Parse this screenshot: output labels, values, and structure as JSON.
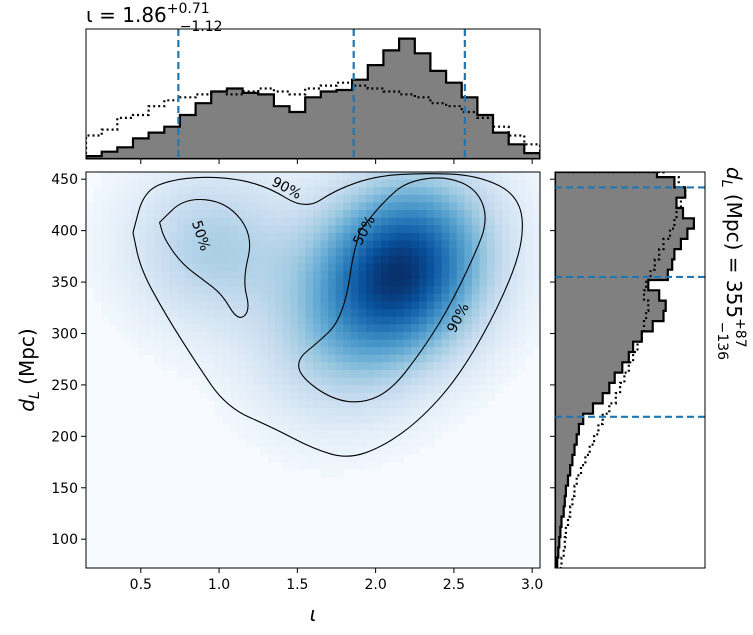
{
  "chart_data": [
    {
      "panel": "top-marginal",
      "type": "histogram",
      "title": "ι = 1.86",
      "title_base": "ι = 1.86",
      "title_sup": "+0.71",
      "title_sub": "−1.12",
      "xlim": [
        0.15,
        3.05
      ],
      "quantile_lines_x": [
        0.74,
        1.86,
        2.57
      ],
      "bin_edges": [
        0.15,
        0.25,
        0.35,
        0.45,
        0.55,
        0.65,
        0.75,
        0.85,
        0.95,
        1.05,
        1.15,
        1.25,
        1.35,
        1.45,
        1.55,
        1.65,
        1.75,
        1.85,
        1.95,
        2.05,
        2.15,
        2.25,
        2.35,
        2.45,
        2.55,
        2.65,
        2.75,
        2.85,
        2.95,
        3.05
      ],
      "series": [
        {
          "style": "filled-gray",
          "values": [
            2,
            5,
            8,
            14,
            18,
            22,
            30,
            38,
            46,
            48,
            45,
            44,
            36,
            32,
            42,
            46,
            47,
            54,
            64,
            74,
            82,
            72,
            60,
            52,
            42,
            30,
            18,
            10,
            4
          ]
        },
        {
          "style": "dotted",
          "values": [
            16,
            20,
            28,
            30,
            36,
            40,
            42,
            44,
            46,
            44,
            46,
            48,
            46,
            44,
            48,
            50,
            52,
            50,
            48,
            46,
            44,
            42,
            38,
            36,
            32,
            28,
            22,
            16,
            10
          ]
        }
      ]
    },
    {
      "panel": "main-density",
      "type": "heatmap",
      "xlabel": "ι",
      "ylabel": "d_L (Mpc)",
      "xlim": [
        0.15,
        3.05
      ],
      "ylim": [
        72,
        457
      ],
      "xticks": [
        "0.5",
        "1.0",
        "1.5",
        "2.0",
        "2.5",
        "3.0"
      ],
      "yticks": [
        "100",
        "150",
        "200",
        "250",
        "300",
        "350",
        "400",
        "450"
      ],
      "density_peaks": [
        {
          "x": 2.1,
          "y": 345,
          "weight": 1.0
        },
        {
          "x": 2.3,
          "y": 400,
          "weight": 0.55
        },
        {
          "x": 0.95,
          "y": 385,
          "weight": 0.45
        },
        {
          "x": 1.7,
          "y": 275,
          "weight": 0.3
        }
      ],
      "contours": [
        {
          "label": "50%",
          "points": [
            [
              0.62,
              408
            ],
            [
              0.78,
              432
            ],
            [
              1.05,
              428
            ],
            [
              1.22,
              395
            ],
            [
              1.15,
              352
            ],
            [
              1.2,
              322
            ],
            [
              1.12,
              312
            ],
            [
              1.02,
              338
            ],
            [
              0.9,
              352
            ],
            [
              0.76,
              368
            ],
            [
              0.65,
              392
            ],
            [
              0.62,
              408
            ]
          ]
        },
        {
          "label": "50%",
          "points": [
            [
              1.9,
              400
            ],
            [
              2.05,
              428
            ],
            [
              2.2,
              448
            ],
            [
              2.45,
              453
            ],
            [
              2.65,
              440
            ],
            [
              2.72,
              410
            ],
            [
              2.62,
              372
            ],
            [
              2.45,
              320
            ],
            [
              2.28,
              280
            ],
            [
              2.1,
              245
            ],
            [
              1.92,
              232
            ],
            [
              1.72,
              236
            ],
            [
              1.52,
              258
            ],
            [
              1.5,
              275
            ],
            [
              1.62,
              290
            ],
            [
              1.75,
              308
            ],
            [
              1.82,
              338
            ],
            [
              1.85,
              372
            ],
            [
              1.9,
              400
            ]
          ]
        },
        {
          "label": "90%",
          "points": [
            [
              0.45,
              398
            ],
            [
              0.52,
              438
            ],
            [
              0.7,
              450
            ],
            [
              1.0,
              453
            ],
            [
              1.3,
              444
            ],
            [
              1.55,
              420
            ],
            [
              1.75,
              440
            ],
            [
              2.0,
              453
            ],
            [
              2.3,
              456
            ],
            [
              2.65,
              454
            ],
            [
              2.92,
              434
            ],
            [
              2.95,
              390
            ],
            [
              2.8,
              330
            ],
            [
              2.55,
              262
            ],
            [
              2.3,
              218
            ],
            [
              2.05,
              190
            ],
            [
              1.82,
              178
            ],
            [
              1.6,
              188
            ],
            [
              1.35,
              208
            ],
            [
              1.05,
              228
            ],
            [
              0.85,
              272
            ],
            [
              0.66,
              318
            ],
            [
              0.5,
              362
            ],
            [
              0.45,
              398
            ]
          ]
        }
      ],
      "contour_labels": [
        {
          "text": "90%",
          "x": 1.43,
          "y": 441
        },
        {
          "text": "50%",
          "x": 0.88,
          "y": 395
        },
        {
          "text": "50%",
          "x": 1.93,
          "y": 400
        },
        {
          "text": "90%",
          "x": 2.53,
          "y": 315
        }
      ]
    },
    {
      "panel": "right-marginal",
      "type": "histogram",
      "orientation": "horizontal",
      "title": "d_L (Mpc) = 355",
      "title_base": "(Mpc) = 355",
      "title_sup": "+87",
      "title_sub": "−136",
      "ylim": [
        72,
        457
      ],
      "quantile_lines_y": [
        219,
        355,
        442
      ],
      "bin_edges": [
        72,
        82,
        92,
        102,
        112,
        122,
        132,
        142,
        152,
        162,
        172,
        182,
        192,
        202,
        212,
        222,
        232,
        242,
        252,
        262,
        272,
        282,
        292,
        302,
        312,
        322,
        332,
        342,
        352,
        362,
        372,
        382,
        392,
        402,
        412,
        422,
        432,
        442,
        452,
        457
      ],
      "series": [
        {
          "style": "filled-gray",
          "values": [
            2,
            3,
            4,
            5,
            6,
            8,
            9,
            10,
            12,
            14,
            16,
            18,
            20,
            22,
            26,
            35,
            44,
            50,
            55,
            62,
            68,
            72,
            80,
            90,
            100,
            102,
            96,
            86,
            104,
            108,
            110,
            116,
            122,
            128,
            118,
            112,
            120,
            110,
            94
          ]
        },
        {
          "style": "dotted",
          "values": [
            6,
            8,
            9,
            10,
            12,
            14,
            16,
            18,
            20,
            24,
            28,
            32,
            36,
            40,
            44,
            50,
            56,
            60,
            64,
            68,
            72,
            76,
            80,
            82,
            84,
            86,
            82,
            84,
            88,
            92,
            96,
            100,
            106,
            110,
            112,
            116,
            120,
            114,
            100
          ]
        }
      ]
    }
  ]
}
